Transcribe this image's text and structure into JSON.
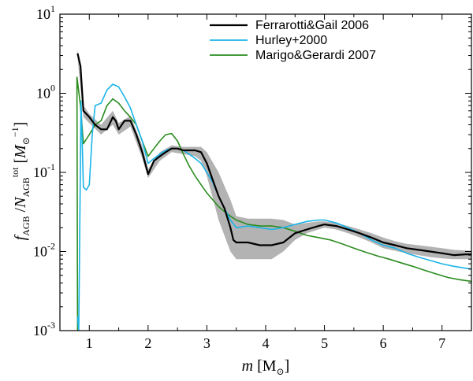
{
  "chart_data": {
    "type": "line",
    "xlabel": "m [M⊙]",
    "ylabel": "f_AGB / N_AGB^tot [M⊙^-1]",
    "xlim": [
      0.5,
      7.5
    ],
    "ylim": [
      0.001,
      10
    ],
    "yscale": "log",
    "grid": false,
    "legend_position": "top-right",
    "x_ticks": [
      1,
      2,
      3,
      4,
      5,
      6,
      7
    ],
    "x_tick_labels": [
      "1",
      "2",
      "3",
      "4",
      "5",
      "6",
      "7"
    ],
    "y_ticks": [
      0.001,
      0.01,
      0.1,
      1,
      10
    ],
    "y_tick_labels": [
      {
        "base": "10",
        "exp": "-3"
      },
      {
        "base": "10",
        "exp": "-2"
      },
      {
        "base": "10",
        "exp": "-1"
      },
      {
        "base": "10",
        "exp": "0"
      },
      {
        "base": "10",
        "exp": "1"
      }
    ],
    "series": [
      {
        "name": "Ferrarotti&Gail 2006",
        "color": "#000000",
        "points": [
          [
            0.8,
            3.2
          ],
          [
            0.85,
            2.2
          ],
          [
            0.9,
            0.6
          ],
          [
            1.0,
            0.5
          ],
          [
            1.1,
            0.4
          ],
          [
            1.2,
            0.35
          ],
          [
            1.3,
            0.35
          ],
          [
            1.4,
            0.5
          ],
          [
            1.45,
            0.45
          ],
          [
            1.5,
            0.35
          ],
          [
            1.6,
            0.45
          ],
          [
            1.7,
            0.45
          ],
          [
            1.8,
            0.3
          ],
          [
            1.9,
            0.18
          ],
          [
            2.0,
            0.095
          ],
          [
            2.1,
            0.14
          ],
          [
            2.2,
            0.16
          ],
          [
            2.3,
            0.18
          ],
          [
            2.4,
            0.2
          ],
          [
            2.5,
            0.2
          ],
          [
            2.6,
            0.19
          ],
          [
            2.7,
            0.19
          ],
          [
            2.8,
            0.19
          ],
          [
            2.9,
            0.18
          ],
          [
            3.0,
            0.13
          ],
          [
            3.1,
            0.08
          ],
          [
            3.2,
            0.05
          ],
          [
            3.3,
            0.035
          ],
          [
            3.4,
            0.02
          ],
          [
            3.45,
            0.014
          ],
          [
            3.5,
            0.013
          ],
          [
            3.7,
            0.013
          ],
          [
            3.9,
            0.012
          ],
          [
            4.1,
            0.012
          ],
          [
            4.3,
            0.013
          ],
          [
            4.5,
            0.017
          ],
          [
            4.7,
            0.019
          ],
          [
            4.9,
            0.021
          ],
          [
            5.0,
            0.022
          ],
          [
            5.2,
            0.021
          ],
          [
            5.4,
            0.019
          ],
          [
            5.6,
            0.017
          ],
          [
            5.8,
            0.015
          ],
          [
            6.0,
            0.013
          ],
          [
            6.2,
            0.012
          ],
          [
            6.4,
            0.011
          ],
          [
            6.6,
            0.0105
          ],
          [
            6.8,
            0.01
          ],
          [
            7.0,
            0.0095
          ],
          [
            7.2,
            0.009
          ],
          [
            7.4,
            0.0092
          ],
          [
            7.5,
            0.0092
          ]
        ]
      },
      {
        "name": "Hurley+2000",
        "color": "#1ab4e8",
        "points": [
          [
            0.8,
            0.0015
          ],
          [
            0.82,
            0.001
          ],
          [
            0.86,
            0.8
          ],
          [
            0.9,
            0.065
          ],
          [
            0.95,
            0.06
          ],
          [
            1.0,
            0.07
          ],
          [
            1.05,
            0.3
          ],
          [
            1.1,
            0.7
          ],
          [
            1.2,
            0.75
          ],
          [
            1.3,
            1.1
          ],
          [
            1.4,
            1.3
          ],
          [
            1.5,
            1.2
          ],
          [
            1.6,
            0.9
          ],
          [
            1.7,
            0.65
          ],
          [
            1.8,
            0.4
          ],
          [
            1.9,
            0.25
          ],
          [
            2.0,
            0.13
          ],
          [
            2.1,
            0.15
          ],
          [
            2.2,
            0.17
          ],
          [
            2.3,
            0.19
          ],
          [
            2.4,
            0.2
          ],
          [
            2.5,
            0.2
          ],
          [
            2.6,
            0.19
          ],
          [
            2.7,
            0.17
          ],
          [
            2.8,
            0.15
          ],
          [
            2.9,
            0.13
          ],
          [
            3.0,
            0.1
          ],
          [
            3.1,
            0.075
          ],
          [
            3.2,
            0.05
          ],
          [
            3.3,
            0.035
          ],
          [
            3.4,
            0.025
          ],
          [
            3.5,
            0.02
          ],
          [
            3.7,
            0.021
          ],
          [
            3.9,
            0.02
          ],
          [
            4.1,
            0.019
          ],
          [
            4.3,
            0.02
          ],
          [
            4.5,
            0.022
          ],
          [
            4.7,
            0.024
          ],
          [
            4.9,
            0.025
          ],
          [
            5.0,
            0.025
          ],
          [
            5.2,
            0.023
          ],
          [
            5.4,
            0.02
          ],
          [
            5.6,
            0.017
          ],
          [
            5.8,
            0.014
          ],
          [
            6.0,
            0.012
          ],
          [
            6.2,
            0.011
          ],
          [
            6.4,
            0.0095
          ],
          [
            6.6,
            0.0085
          ],
          [
            6.8,
            0.0077
          ],
          [
            7.0,
            0.007
          ],
          [
            7.2,
            0.0065
          ],
          [
            7.5,
            0.006
          ]
        ]
      },
      {
        "name": "Marigo&Gerardi 2007",
        "color": "#2a8c1e",
        "points": [
          [
            0.8,
            0.001
          ],
          [
            0.79,
            1.6
          ],
          [
            0.85,
            0.7
          ],
          [
            0.9,
            0.23
          ],
          [
            1.0,
            0.3
          ],
          [
            1.1,
            0.4
          ],
          [
            1.2,
            0.45
          ],
          [
            1.3,
            0.7
          ],
          [
            1.4,
            0.85
          ],
          [
            1.5,
            0.75
          ],
          [
            1.6,
            0.6
          ],
          [
            1.7,
            0.5
          ],
          [
            1.8,
            0.4
          ],
          [
            1.9,
            0.25
          ],
          [
            2.0,
            0.16
          ],
          [
            2.1,
            0.2
          ],
          [
            2.2,
            0.25
          ],
          [
            2.3,
            0.3
          ],
          [
            2.4,
            0.31
          ],
          [
            2.5,
            0.25
          ],
          [
            2.6,
            0.17
          ],
          [
            2.7,
            0.12
          ],
          [
            2.8,
            0.09
          ],
          [
            2.9,
            0.07
          ],
          [
            3.0,
            0.055
          ],
          [
            3.1,
            0.045
          ],
          [
            3.2,
            0.037
          ],
          [
            3.3,
            0.032
          ],
          [
            3.4,
            0.028
          ],
          [
            3.5,
            0.025
          ],
          [
            3.7,
            0.022
          ],
          [
            3.9,
            0.021
          ],
          [
            4.1,
            0.021
          ],
          [
            4.3,
            0.02
          ],
          [
            4.5,
            0.018
          ],
          [
            4.7,
            0.016
          ],
          [
            4.9,
            0.015
          ],
          [
            5.1,
            0.014
          ],
          [
            5.3,
            0.0125
          ],
          [
            5.5,
            0.011
          ],
          [
            5.7,
            0.0098
          ],
          [
            5.9,
            0.0088
          ],
          [
            6.1,
            0.008
          ],
          [
            6.3,
            0.0072
          ],
          [
            6.5,
            0.0065
          ],
          [
            6.7,
            0.0058
          ],
          [
            6.9,
            0.0052
          ],
          [
            7.1,
            0.0047
          ],
          [
            7.3,
            0.0044
          ],
          [
            7.5,
            0.0042
          ]
        ]
      }
    ],
    "uncertainty_band": {
      "name": "Ferrarotti&Gail 2006 spread",
      "color": "#b3b3b3",
      "points": [
        [
          0.8,
          2.8,
          3.6
        ],
        [
          0.9,
          0.5,
          0.7
        ],
        [
          1.0,
          0.42,
          0.55
        ],
        [
          1.2,
          0.3,
          0.4
        ],
        [
          1.4,
          0.4,
          0.6
        ],
        [
          1.5,
          0.3,
          0.42
        ],
        [
          1.7,
          0.38,
          0.52
        ],
        [
          1.9,
          0.15,
          0.22
        ],
        [
          2.0,
          0.085,
          0.11
        ],
        [
          2.2,
          0.14,
          0.18
        ],
        [
          2.4,
          0.18,
          0.22
        ],
        [
          2.6,
          0.17,
          0.21
        ],
        [
          2.8,
          0.16,
          0.21
        ],
        [
          2.9,
          0.14,
          0.21
        ],
        [
          3.0,
          0.09,
          0.18
        ],
        [
          3.2,
          0.025,
          0.1
        ],
        [
          3.4,
          0.01,
          0.045
        ],
        [
          3.5,
          0.008,
          0.028
        ],
        [
          3.7,
          0.008,
          0.026
        ],
        [
          3.9,
          0.008,
          0.026
        ],
        [
          4.1,
          0.008,
          0.026
        ],
        [
          4.3,
          0.01,
          0.025
        ],
        [
          4.5,
          0.014,
          0.022
        ],
        [
          4.7,
          0.017,
          0.023
        ],
        [
          4.9,
          0.019,
          0.024
        ],
        [
          5.0,
          0.02,
          0.024
        ],
        [
          5.2,
          0.019,
          0.023
        ],
        [
          5.4,
          0.017,
          0.021
        ],
        [
          5.6,
          0.015,
          0.019
        ],
        [
          5.8,
          0.013,
          0.017
        ],
        [
          6.0,
          0.011,
          0.015
        ],
        [
          6.2,
          0.0102,
          0.0135
        ],
        [
          6.4,
          0.0095,
          0.0125
        ],
        [
          6.6,
          0.009,
          0.012
        ],
        [
          6.8,
          0.0085,
          0.0115
        ],
        [
          7.0,
          0.0082,
          0.011
        ],
        [
          7.2,
          0.008,
          0.0105
        ],
        [
          7.5,
          0.008,
          0.0102
        ]
      ]
    }
  }
}
